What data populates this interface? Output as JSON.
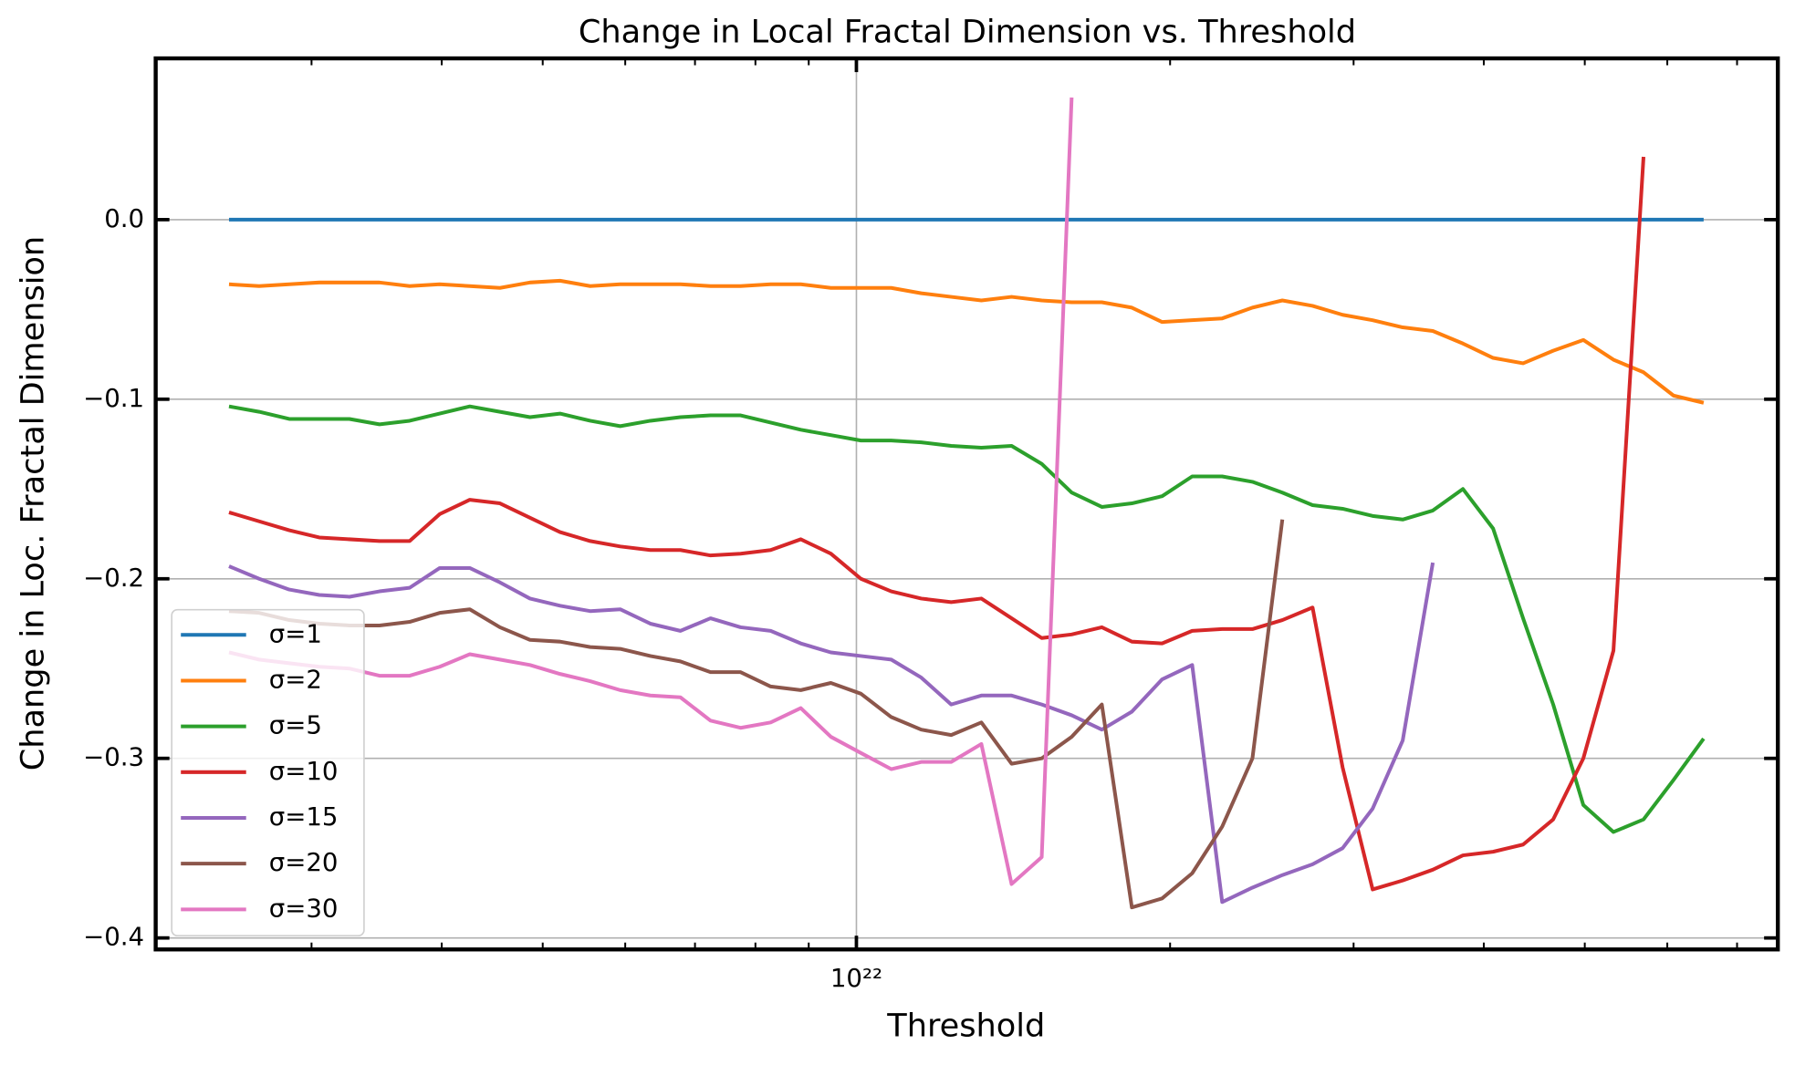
{
  "chart_data": {
    "type": "line",
    "title": "Change in Local Fractal Dimension vs. Threshold",
    "xlabel": "Threshold",
    "ylabel": "Change in Loc. Fractal Dimension",
    "xscale": "log",
    "grid": true,
    "legend": "lower left",
    "xlim": [
      2.126e+21,
      7.66e+22
    ],
    "ylim": [
      -0.4064,
      0.0898
    ],
    "xticks": [
      {
        "value": 1e+22,
        "label": "10²²"
      }
    ],
    "xminorticks": [
      3e+21,
      4e+21,
      5e+21,
      6e+21,
      7e+21,
      8e+21,
      9e+21,
      2e+22,
      3e+22,
      4e+22,
      5e+22,
      6e+22,
      7e+22
    ],
    "yticks": [
      {
        "value": -0.4,
        "label": "−0.4"
      },
      {
        "value": -0.3,
        "label": "−0.3"
      },
      {
        "value": -0.2,
        "label": "−0.2"
      },
      {
        "value": -0.1,
        "label": "−0.1"
      },
      {
        "value": 0,
        "label": "0.0"
      }
    ],
    "x": [
      2.5e+21,
      2.672e+21,
      2.856e+21,
      3.052e+21,
      3.262e+21,
      3.486e+21,
      3.726e+21,
      3.982e+21,
      4.256e+21,
      4.549e+21,
      4.861e+21,
      5.195e+21,
      5.553e+21,
      5.934e+21,
      6.342e+21,
      6.778e+21,
      7.244e+21,
      7.742e+21,
      8.274e+21,
      8.843e+21,
      9.451e+21,
      1.01e+22,
      1.08e+22,
      1.154e+22,
      1.233e+22,
      1.318e+22,
      1.409e+22,
      1.506e+22,
      1.609e+22,
      1.72e+22,
      1.838e+22,
      1.965e+22,
      2.1e+22,
      2.244e+22,
      2.399e+22,
      2.563e+22,
      2.74e+22,
      2.928e+22,
      3.129e+22,
      3.344e+22,
      3.574e+22,
      3.82e+22,
      4.083e+22,
      4.363e+22,
      4.663e+22,
      4.984e+22,
      5.327e+22,
      5.693e+22,
      6.084e+22,
      6.502e+22
    ],
    "series": [
      {
        "name": "σ=1",
        "color": "#1f77b4",
        "values": [
          0,
          0,
          0,
          0,
          0,
          0,
          0,
          0,
          0,
          0,
          0,
          0,
          0,
          0,
          0,
          0,
          0,
          0,
          0,
          0,
          0,
          0,
          0,
          0,
          0,
          0,
          0,
          0,
          0,
          0,
          0,
          0,
          0,
          0,
          0,
          0,
          0,
          0,
          0,
          0,
          0,
          0,
          0,
          0,
          0,
          0,
          0,
          0,
          0,
          0
        ]
      },
      {
        "name": "σ=2",
        "color": "#ff7f0e",
        "values": [
          -0.036,
          -0.037,
          -0.036,
          -0.035,
          -0.035,
          -0.035,
          -0.037,
          -0.036,
          -0.037,
          -0.038,
          -0.035,
          -0.034,
          -0.037,
          -0.036,
          -0.036,
          -0.036,
          -0.037,
          -0.037,
          -0.036,
          -0.036,
          -0.038,
          -0.038,
          -0.038,
          -0.041,
          -0.043,
          -0.045,
          -0.043,
          -0.045,
          -0.046,
          -0.046,
          -0.049,
          -0.057,
          -0.056,
          -0.055,
          -0.049,
          -0.045,
          -0.048,
          -0.053,
          -0.056,
          -0.06,
          -0.062,
          -0.069,
          -0.077,
          -0.08,
          -0.073,
          -0.067,
          -0.078,
          -0.085,
          -0.098,
          -0.102
        ]
      },
      {
        "name": "σ=5",
        "color": "#2ca02c",
        "values": [
          -0.104,
          -0.107,
          -0.111,
          -0.111,
          -0.111,
          -0.114,
          -0.112,
          -0.108,
          -0.104,
          -0.107,
          -0.11,
          -0.108,
          -0.112,
          -0.115,
          -0.112,
          -0.11,
          -0.109,
          -0.109,
          -0.113,
          -0.117,
          -0.12,
          -0.123,
          -0.123,
          -0.124,
          -0.126,
          -0.127,
          -0.126,
          -0.136,
          -0.152,
          -0.16,
          -0.158,
          -0.154,
          -0.143,
          -0.143,
          -0.146,
          -0.152,
          -0.159,
          -0.161,
          -0.165,
          -0.167,
          -0.162,
          -0.15,
          -0.172,
          -0.222,
          -0.27,
          -0.326,
          -0.341,
          -0.334,
          -0.312,
          -0.289
        ]
      },
      {
        "name": "σ=10",
        "color": "#d62728",
        "values": [
          -0.163,
          -0.168,
          -0.173,
          -0.177,
          -0.178,
          -0.179,
          -0.179,
          -0.164,
          -0.156,
          -0.158,
          -0.166,
          -0.174,
          -0.179,
          -0.182,
          -0.184,
          -0.184,
          -0.187,
          -0.186,
          -0.184,
          -0.178,
          -0.186,
          -0.2,
          -0.207,
          -0.211,
          -0.213,
          -0.211,
          -0.222,
          -0.233,
          -0.231,
          -0.227,
          -0.235,
          -0.236,
          -0.229,
          -0.228,
          -0.228,
          -0.223,
          -0.216,
          -0.305,
          -0.373,
          -0.368,
          -0.362,
          -0.354,
          -0.352,
          -0.348,
          -0.334,
          -0.3,
          -0.24,
          0.035,
          null,
          null
        ]
      },
      {
        "name": "σ=15",
        "color": "#9467bd",
        "values": [
          -0.193,
          -0.2,
          -0.206,
          -0.209,
          -0.21,
          -0.207,
          -0.205,
          -0.194,
          -0.194,
          -0.202,
          -0.211,
          -0.215,
          -0.218,
          -0.217,
          -0.225,
          -0.229,
          -0.222,
          -0.227,
          -0.229,
          -0.236,
          -0.241,
          -0.243,
          -0.245,
          -0.255,
          -0.27,
          -0.265,
          -0.265,
          -0.27,
          -0.276,
          -0.284,
          -0.274,
          -0.256,
          -0.248,
          -0.38,
          -0.372,
          -0.365,
          -0.359,
          -0.35,
          -0.328,
          -0.29,
          -0.191,
          null,
          null,
          null,
          null,
          null,
          null,
          null,
          null,
          null
        ]
      },
      {
        "name": "σ=20",
        "color": "#8c564b",
        "values": [
          -0.218,
          -0.219,
          -0.223,
          -0.225,
          -0.226,
          -0.226,
          -0.224,
          -0.219,
          -0.217,
          -0.227,
          -0.234,
          -0.235,
          -0.238,
          -0.239,
          -0.243,
          -0.246,
          -0.252,
          -0.252,
          -0.26,
          -0.262,
          -0.258,
          -0.264,
          -0.277,
          -0.284,
          -0.287,
          -0.28,
          -0.303,
          -0.3,
          -0.288,
          -0.27,
          -0.383,
          -0.378,
          -0.364,
          -0.338,
          -0.3,
          -0.167,
          null,
          null,
          null,
          null,
          null,
          null,
          null,
          null,
          null,
          null,
          null,
          null,
          null,
          null
        ]
      },
      {
        "name": "σ=30",
        "color": "#e377c2",
        "values": [
          -0.241,
          -0.245,
          -0.247,
          -0.249,
          -0.25,
          -0.254,
          -0.254,
          -0.249,
          -0.242,
          -0.245,
          -0.248,
          -0.253,
          -0.257,
          -0.262,
          -0.265,
          -0.266,
          -0.279,
          -0.283,
          -0.28,
          -0.272,
          -0.288,
          -0.297,
          -0.306,
          -0.302,
          -0.302,
          -0.292,
          -0.37,
          -0.355,
          0.068,
          null,
          null,
          null,
          null,
          null,
          null,
          null,
          null,
          null,
          null,
          null,
          null,
          null,
          null,
          null,
          null,
          null,
          null,
          null,
          null,
          null
        ]
      }
    ]
  }
}
